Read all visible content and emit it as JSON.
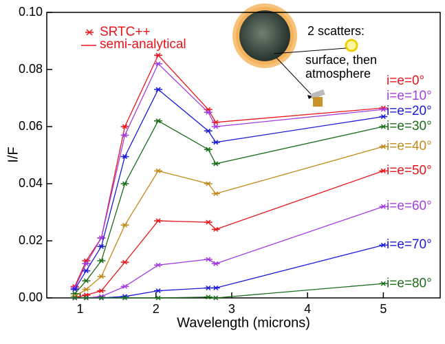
{
  "chart_data": {
    "type": "line",
    "x_label": "Wavelength (microns)",
    "y_label": "I/F",
    "x": [
      0.93,
      1.08,
      1.28,
      1.59,
      2.03,
      2.69,
      2.79,
      5.0
    ],
    "series": [
      {
        "name": "i=e=0°",
        "color": "#e8141c",
        "values": [
          0.004,
          0.013,
          0.021,
          0.06,
          0.085,
          0.066,
          0.0615,
          0.0665
        ]
      },
      {
        "name": "i=e=10°",
        "color": "#a23ee0",
        "values": [
          0.0035,
          0.012,
          0.021,
          0.057,
          0.082,
          0.065,
          0.06,
          0.066
        ]
      },
      {
        "name": "i=e=20°",
        "color": "#1a1ad8",
        "values": [
          0.003,
          0.0095,
          0.018,
          0.0495,
          0.073,
          0.0585,
          0.0545,
          0.0635
        ]
      },
      {
        "name": "i=e=30°",
        "color": "#1a6b1a",
        "values": [
          0.0015,
          0.006,
          0.013,
          0.04,
          0.062,
          0.052,
          0.047,
          0.06
        ]
      },
      {
        "name": "i=e=40°",
        "color": "#c08a1a",
        "values": [
          0.0005,
          0.003,
          0.0075,
          0.0255,
          0.0445,
          0.04,
          0.0365,
          0.053
        ]
      },
      {
        "name": "i=e=50°",
        "color": "#e8141c",
        "values": [
          0,
          0.001,
          0.0025,
          0.0125,
          0.027,
          0.0265,
          0.024,
          0.0445
        ]
      },
      {
        "name": "i=e=60°",
        "color": "#a23ee0",
        "values": [
          0,
          0,
          0.0005,
          0.004,
          0.0115,
          0.0135,
          0.012,
          0.032
        ]
      },
      {
        "name": "i=e=70°",
        "color": "#1a1ad8",
        "values": [
          0,
          0,
          0,
          0.0005,
          0.0025,
          0.0035,
          0.0035,
          0.0185
        ]
      },
      {
        "name": "i=e=80°",
        "color": "#1a6b1a",
        "values": [
          0,
          0,
          0,
          0,
          0,
          0.0003,
          0,
          0.005
        ]
      }
    ],
    "xlim": [
      0.56,
      5.75
    ],
    "xticks": [
      1,
      2,
      3,
      4,
      5
    ],
    "ylim": [
      0,
      0.1
    ],
    "yticks": [
      {
        "value": 0,
        "label": "0.00"
      },
      {
        "value": 0.02,
        "label": "0.02"
      },
      {
        "value": 0.04,
        "label": "0.04"
      },
      {
        "value": 0.06,
        "label": "0.06"
      },
      {
        "value": 0.08,
        "label": "0.08"
      },
      {
        "value": 0.1,
        "label": "0.10"
      }
    ],
    "legend": [
      "SRTC++",
      "semi-analytical"
    ],
    "legend_color": "#e8141c",
    "annotations": [
      "2 scatters:",
      "surface, then",
      "atmosphere"
    ]
  }
}
